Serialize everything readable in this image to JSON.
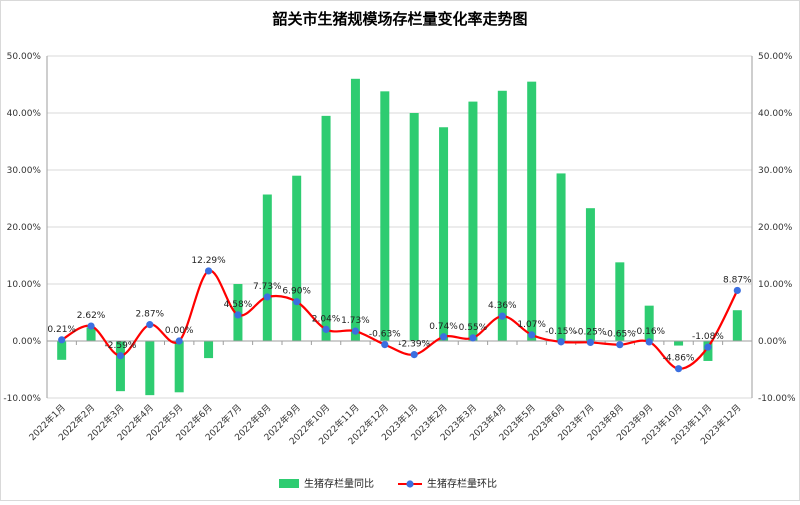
{
  "chart_data": {
    "type": "bar+line",
    "title": "韶关市生猪规模场存栏量变化率走势图",
    "categories": [
      "2022年1月",
      "2022年2月",
      "2022年3月",
      "2022年4月",
      "2022年5月",
      "2022年6月",
      "2022年7月",
      "2022年8月",
      "2022年9月",
      "2022年10月",
      "2022年11月",
      "2022年12月",
      "2023年1月",
      "2023年2月",
      "2023年3月",
      "2023年4月",
      "2023年5月",
      "2023年6月",
      "2023年7月",
      "2023年8月",
      "2023年9月",
      "2023年10月",
      "2023年11月",
      "2023年12月"
    ],
    "series": [
      {
        "name": "生猪存栏量同比",
        "type": "bar",
        "axis": "left",
        "color": "#2ECC71",
        "values": [
          -3.3,
          2.4,
          -8.8,
          -9.5,
          -9.0,
          -3.0,
          10.0,
          25.7,
          29.0,
          39.5,
          46.0,
          43.8,
          40.0,
          37.5,
          42.0,
          43.9,
          45.5,
          29.4,
          23.3,
          13.8,
          6.2,
          -0.8,
          -3.5,
          5.4
        ]
      },
      {
        "name": "生猪存栏量环比",
        "type": "line",
        "axis": "right",
        "color": "#FF0000",
        "marker_color": "#3B6FE0",
        "values": [
          0.21,
          2.62,
          -2.59,
          2.87,
          0.0,
          12.29,
          4.58,
          7.73,
          6.9,
          2.04,
          1.73,
          -0.63,
          -2.39,
          0.74,
          0.55,
          4.36,
          1.07,
          -0.15,
          -0.25,
          -0.65,
          -0.16,
          -4.86,
          -1.08,
          8.87
        ],
        "labels": [
          "0.21%",
          "2.62%",
          "-2.59%",
          "2.87%",
          "0.00%",
          "12.29%",
          "4.58%",
          "7.73%",
          "6.90%",
          "2.04%",
          "1.73%",
          "-0.63%",
          "-2.39%",
          "0.74%",
          "0.55%",
          "4.36%",
          "1.07%",
          "-0.15%",
          "-0.25%",
          "-0.65%",
          "-0.16%",
          "-4.86%",
          "-1.08%",
          "8.87%"
        ]
      }
    ],
    "ylim": [
      -10,
      50
    ],
    "yticks": [
      -10,
      0,
      10,
      20,
      30,
      40,
      50
    ],
    "ytick_labels": [
      "-10.00%",
      "0.00%",
      "10.00%",
      "20.00%",
      "30.00%",
      "40.00%",
      "50.00%"
    ],
    "grid": true,
    "legend_position": "bottom"
  }
}
